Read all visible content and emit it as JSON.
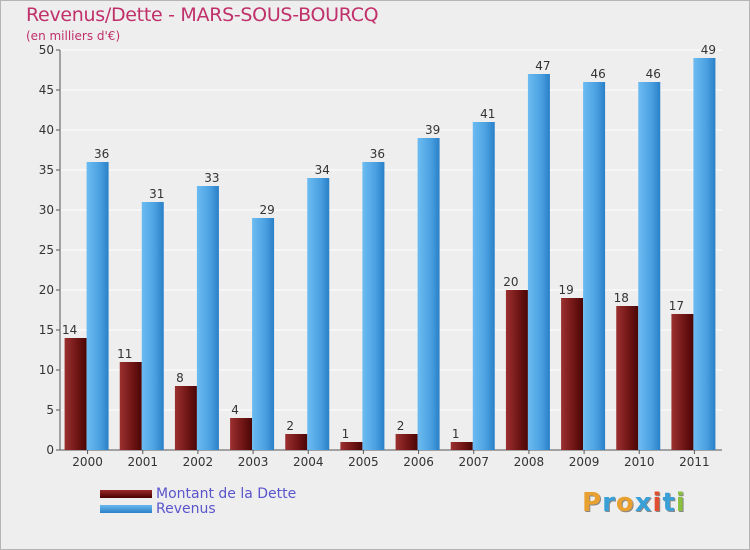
{
  "title": "Revenus/Dette - MARS-SOUS-BOURCQ",
  "subtitle": "(en milliers d'€)",
  "logo": {
    "text": "Proxiti",
    "colors": [
      "#e8a030",
      "#3aa0d8",
      "#e8a030",
      "#3aa0d8",
      "#e05030",
      "#3aa0d8",
      "#8ac040"
    ]
  },
  "colors": {
    "dette": "#7a1a1a",
    "revenus": "#4aa0e0",
    "title": "#c0306a",
    "legend_text": "#5a55cc"
  },
  "legend": [
    {
      "label": "Montant de la Dette",
      "color": "#6a0a0a"
    },
    {
      "label": "Revenus",
      "color": "#4aa0e0"
    }
  ],
  "chart_data": {
    "type": "bar",
    "title": "Revenus/Dette - MARS-SOUS-BOURCQ",
    "ylabel": "(en milliers d'€)",
    "xlabel": "",
    "ylim": [
      0,
      50
    ],
    "yticks": [
      0,
      5,
      10,
      15,
      20,
      25,
      30,
      35,
      40,
      45,
      50
    ],
    "grid": true,
    "categories": [
      "2000",
      "2001",
      "2002",
      "2003",
      "2004",
      "2005",
      "2006",
      "2007",
      "2008",
      "2009",
      "2010",
      "2011"
    ],
    "series": [
      {
        "name": "Montant de la Dette",
        "values": [
          14,
          11,
          8,
          4,
          2,
          1,
          2,
          1,
          20,
          19,
          18,
          17
        ]
      },
      {
        "name": "Revenus",
        "values": [
          36,
          31,
          33,
          29,
          34,
          36,
          39,
          41,
          47,
          46,
          46,
          49
        ]
      }
    ]
  }
}
